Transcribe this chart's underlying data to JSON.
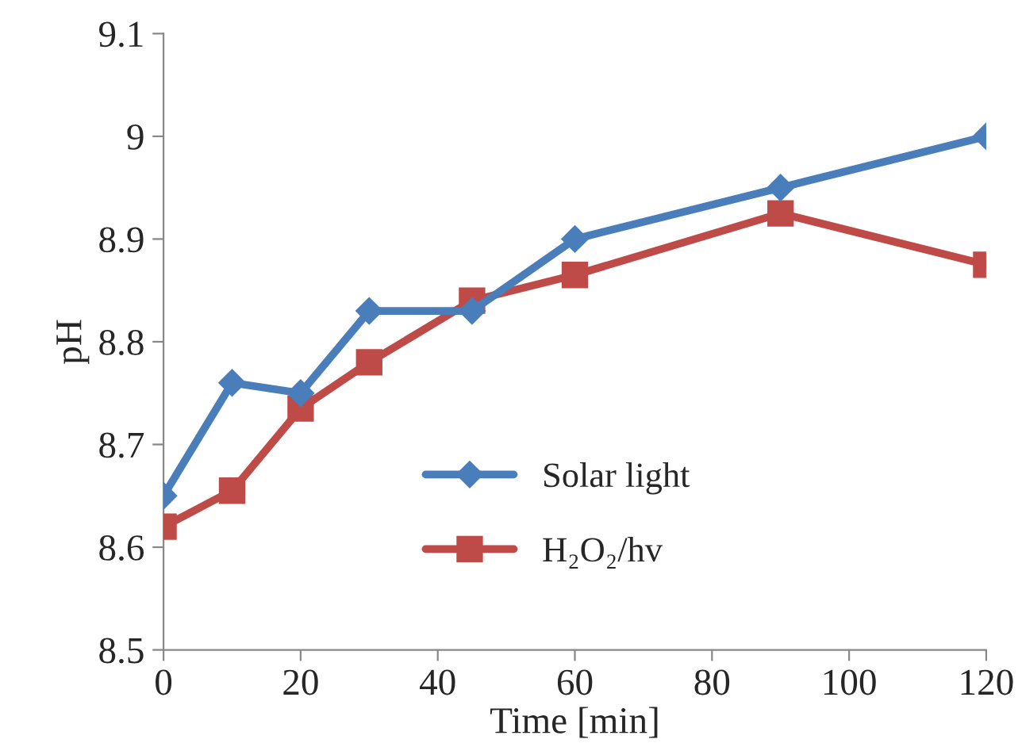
{
  "chart_data": {
    "type": "line",
    "xlabel": "Time [min]",
    "ylabel": "pH",
    "x": [
      0,
      10,
      20,
      30,
      45,
      60,
      90,
      120
    ],
    "series": [
      {
        "name": "Solar light",
        "color": "#4a7ebb",
        "marker": "diamond",
        "values": [
          8.65,
          8.76,
          8.75,
          8.83,
          8.83,
          8.9,
          8.95,
          9.0
        ]
      },
      {
        "name": "H₂O₂/hv",
        "color": "#be4b48",
        "marker": "square",
        "values": [
          8.62,
          8.655,
          8.735,
          8.78,
          8.84,
          8.865,
          8.925,
          8.875
        ]
      }
    ],
    "xlim": [
      0,
      120
    ],
    "xticks": [
      0,
      20,
      40,
      60,
      80,
      100,
      120
    ],
    "ylim": [
      8.5,
      9.1
    ],
    "yticks": [
      {
        "value": 8.5,
        "label": "8.5"
      },
      {
        "value": 8.6,
        "label": "8.6"
      },
      {
        "value": 8.7,
        "label": "8.7"
      },
      {
        "value": 8.8,
        "label": "8.8"
      },
      {
        "value": 8.9,
        "label": "8.9"
      },
      {
        "value": 9.0,
        "label": "9"
      },
      {
        "value": 9.1,
        "label": "9.1"
      }
    ],
    "grid": false,
    "legend": "bottom",
    "line_style": "solid"
  }
}
